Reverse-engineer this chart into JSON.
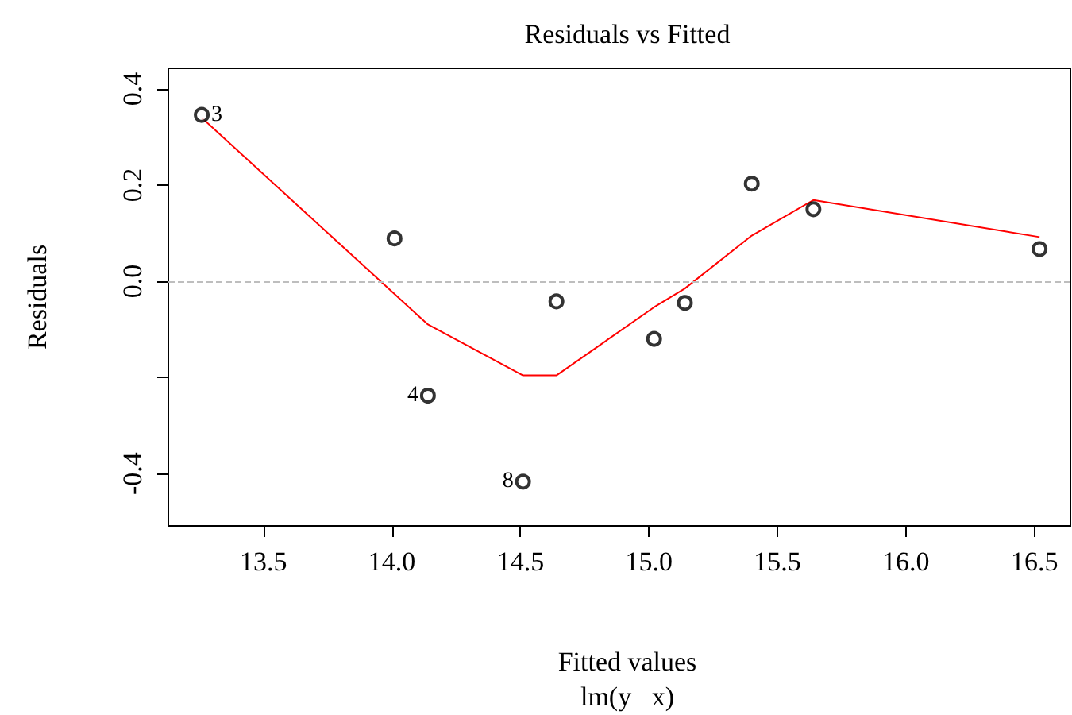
{
  "chart_data": {
    "type": "scatter",
    "title": "Residuals vs Fitted",
    "subtitle": "lm(y   x)",
    "xlabel": "Fitted values",
    "ylabel": "Residuals",
    "xlim": [
      13.13,
      16.64
    ],
    "xticks": [
      13.5,
      {
        "value": 14,
        "label": "14.0"
      },
      14.5,
      {
        "value": 15,
        "label": "15.0"
      },
      15.5,
      {
        "value": 16,
        "label": "16.0"
      },
      16.5
    ],
    "ylim": [
      -0.509,
      0.443
    ],
    "yticks": [
      {
        "value": -0.4,
        "label": "-0.4"
      },
      {
        "value": -0.2,
        "label": null
      },
      {
        "value": 0.0,
        "label": "0.0"
      },
      {
        "value": 0.2,
        "label": "0.2"
      },
      {
        "value": 0.4,
        "label": "0.4"
      }
    ],
    "marker": "circle",
    "grid": false,
    "legend": false,
    "series": [
      {
        "color": "#000000",
        "x": [
          13.26,
          14.01,
          14.14,
          14.51,
          14.64,
          15.02,
          15.14,
          15.4,
          15.64,
          16.52
        ],
        "values": [
          0.346,
          0.089,
          -0.238,
          -0.417,
          -0.042,
          -0.12,
          -0.045,
          0.203,
          0.15,
          0.067
        ]
      },
      {
        "type": "line",
        "color": "#ff0000",
        "marker": "none",
        "line_style": "solid",
        "x": [
          13.26,
          14.14,
          14.51,
          14.64,
          15.02,
          15.14,
          15.4,
          15.64,
          16.52
        ],
        "values": [
          0.34,
          -0.09,
          -0.196,
          -0.196,
          -0.054,
          -0.015,
          0.095,
          0.169,
          0.092
        ]
      }
    ],
    "ref_lines": [
      {
        "axis": "y",
        "value": 0,
        "label": null,
        "color": "#bebebe",
        "line_style": "dashed"
      }
    ],
    "annotations": [
      {
        "text": "3",
        "x": 13.26,
        "y": 0.346
      },
      {
        "text": "4",
        "x": 14.14,
        "y": -0.238
      },
      {
        "text": "8",
        "x": 14.51,
        "y": -0.417
      }
    ]
  }
}
